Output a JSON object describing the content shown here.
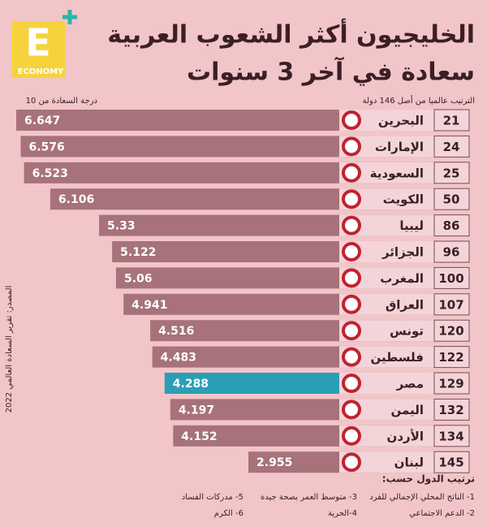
{
  "chart_data": {
    "type": "bar",
    "title": [
      "الخليجيون أكثر الشعوب العربية",
      "سعادة في آخر 3 سنوات"
    ],
    "logo": {
      "letter": "E",
      "name": "ECONOMY"
    },
    "rank_label": "الترتيب عالميا من أصل 146 دولة",
    "value_label": "درجة السعادة من 10",
    "source": "المصدر: تقرير السعادة العالمي 2022",
    "categories": [
      "البحرين",
      "الإمارات",
      "السعودية",
      "الكويت",
      "ليبيا",
      "الجزائر",
      "المغرب",
      "العراق",
      "تونس",
      "فلسطين",
      "مصر",
      "اليمن",
      "الأردن",
      "لبنان"
    ],
    "ranks": [
      21,
      24,
      25,
      50,
      86,
      96,
      100,
      107,
      120,
      122,
      129,
      132,
      134,
      145
    ],
    "values": [
      6.647,
      6.576,
      6.523,
      6.106,
      5.33,
      5.122,
      5.06,
      4.941,
      4.516,
      4.483,
      4.288,
      4.197,
      4.152,
      2.955
    ],
    "colors": [
      "#a7727a",
      "#a7727a",
      "#a7727a",
      "#a7727a",
      "#a7727a",
      "#a7727a",
      "#a7727a",
      "#a7727a",
      "#a7727a",
      "#a7727a",
      "#2b9fb5",
      "#a7727a",
      "#a7727a",
      "#a7727a"
    ],
    "footer": {
      "title": "ترتيب الدول حسب:",
      "items": [
        "1- الناتج المحلي الإجمالي للفرد",
        "2- الدعم الاجتماعي",
        "3- متوسط العمر بصحة جيدة",
        "4-الحرية",
        "5- مدركات الفساد",
        "6- الكرم"
      ]
    }
  }
}
